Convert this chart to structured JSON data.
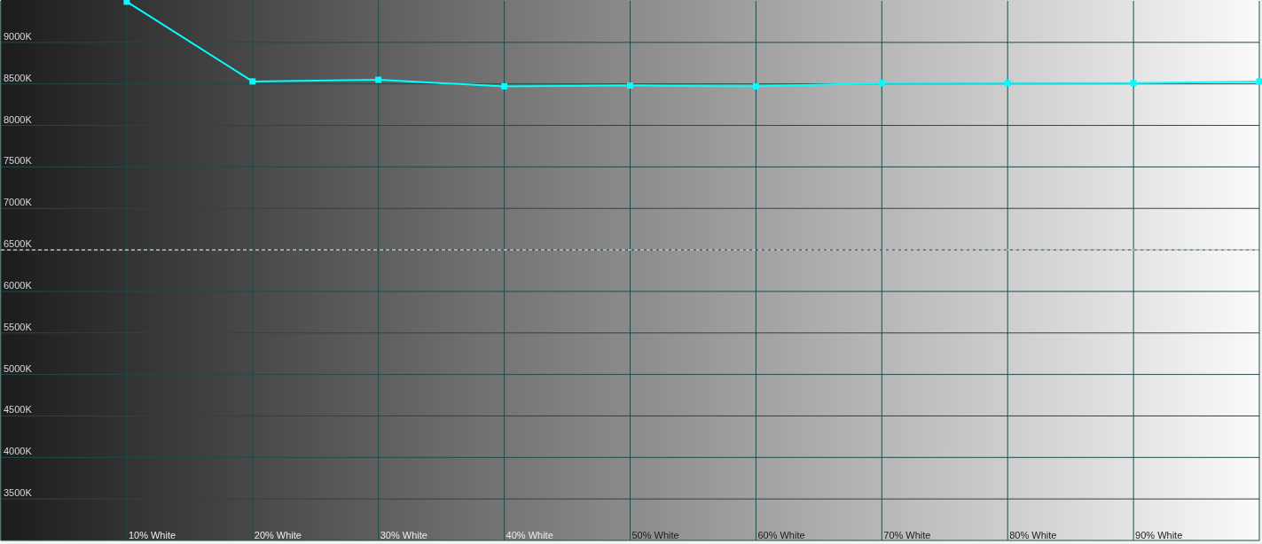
{
  "chart_data": {
    "type": "line",
    "categories": [
      null,
      "10% White",
      "20% White",
      "30% White",
      "40% White",
      "50% White",
      "60% White",
      "70% White",
      "80% White",
      "90% White",
      null
    ],
    "series": [
      {
        "color": "#00ffff",
        "values": [
          null,
          9490,
          8530,
          8550,
          8470,
          8480,
          8470,
          8510,
          8510,
          8510,
          8530
        ]
      }
    ],
    "ylim": [
      3000,
      9500
    ],
    "yticks": [
      {
        "value": 3500,
        "label": "3500K"
      },
      {
        "value": 4000,
        "label": "4000K"
      },
      {
        "value": 4500,
        "label": "4500K"
      },
      {
        "value": 5000,
        "label": "5000K"
      },
      {
        "value": 5500,
        "label": "5500K"
      },
      {
        "value": 6000,
        "label": "6000K"
      },
      {
        "value": 6500,
        "label": "6500K"
      },
      {
        "value": 7000,
        "label": "7000K"
      },
      {
        "value": 7500,
        "label": "7500K"
      },
      {
        "value": 8000,
        "label": "8000K"
      },
      {
        "value": 8500,
        "label": "8500K"
      },
      {
        "value": 9000,
        "label": "9000K"
      }
    ],
    "grid": true,
    "marker": "square",
    "ref_lines": [
      {
        "axis": "y",
        "value": 6500,
        "color": "#ffffff",
        "line_style": "dashed"
      }
    ]
  }
}
